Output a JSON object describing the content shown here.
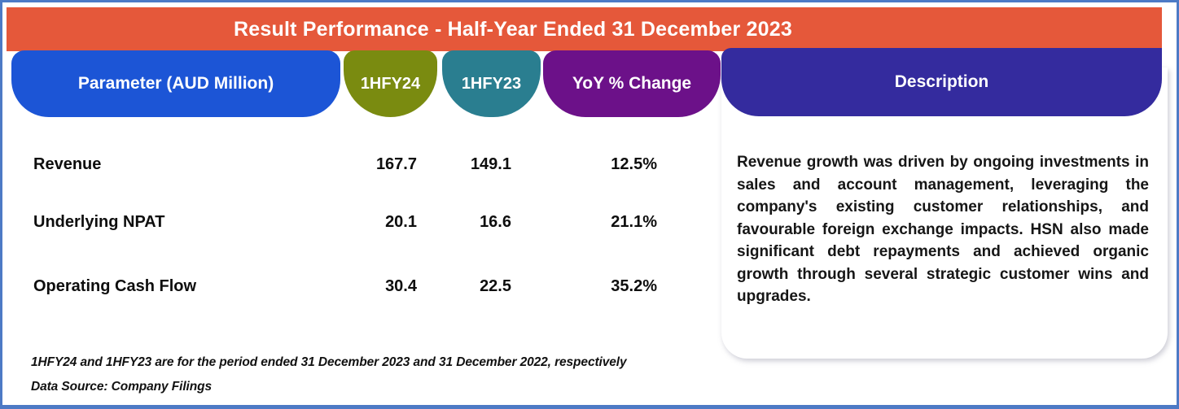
{
  "header": {
    "title": "Result Performance - Half-Year Ended 31 December 2023"
  },
  "columns": {
    "parameter": {
      "label": "Parameter (AUD Million)",
      "color": "#1c55d6"
    },
    "hfy24": {
      "label": "1HFY24",
      "color": "#7a8b10"
    },
    "hfy23": {
      "label": "1HFY23",
      "color": "#2a7e90"
    },
    "yoy": {
      "label": "YoY % Change",
      "color": "#6c1189"
    },
    "description": {
      "label": "Description",
      "color": "#342b9e"
    }
  },
  "rows": [
    {
      "parameter": "Revenue",
      "hfy24": "167.7",
      "hfy23": "149.1",
      "yoy": "12.5%"
    },
    {
      "parameter": "Underlying NPAT",
      "hfy24": "20.1",
      "hfy23": "16.6",
      "yoy": "21.1%"
    },
    {
      "parameter": "Operating Cash Flow",
      "hfy24": "30.4",
      "hfy23": "22.5",
      "yoy": "35.2%"
    }
  ],
  "description_text": "Revenue growth was driven by ongoing investments in sales and account management, leveraging the company's existing customer relationships, and favourable foreign exchange impacts. HSN also made significant debt repayments and achieved organic growth through several strategic customer wins and upgrades.",
  "footnotes": [
    "1HFY24 and 1HFY23  are for the period ended 31 December 2023 and 31 December 2022, respectively",
    "Data Source: Company Filings"
  ],
  "colors": {
    "header_bar": "#e5583a",
    "border": "#4d7ac5",
    "text_dark": "#111111",
    "pill_text": "#ffffff",
    "card_background": "#ffffff"
  },
  "chart_data": {
    "type": "table",
    "title": "Result Performance - Half-Year Ended 31 December 2023",
    "columns": [
      "Parameter (AUD Million)",
      "1HFY24",
      "1HFY23",
      "YoY % Change"
    ],
    "rows": [
      [
        "Revenue",
        167.7,
        149.1,
        "12.5%"
      ],
      [
        "Underlying NPAT",
        20.1,
        16.6,
        "21.1%"
      ],
      [
        "Operating Cash Flow",
        30.4,
        22.5,
        "35.2%"
      ]
    ],
    "notes": "1HFY24 = period ended 31 December 2023; 1HFY23 = period ended 31 December 2022; Data Source: Company Filings"
  }
}
